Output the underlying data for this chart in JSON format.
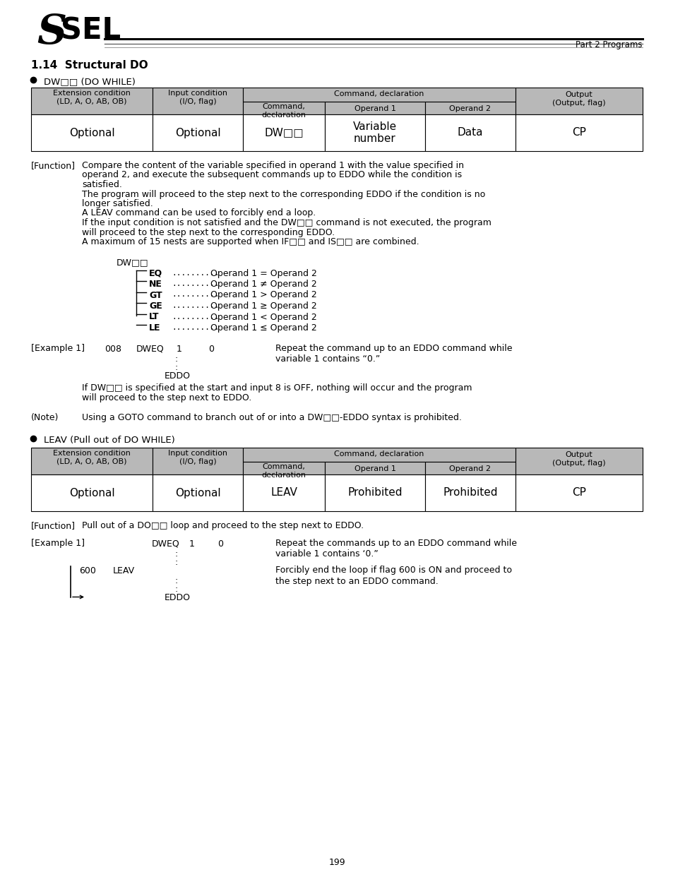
{
  "title_section": "1.14  Structural DO",
  "header_text": "Part 2 Programs",
  "bg_color": "#ffffff",
  "header_bg": "#b0b0b0",
  "bullet1": "DW□□ (DO WHILE)",
  "bullet2": "LEAV (Pull out of DO WHILE)",
  "table1_row": [
    "Optional",
    "Optional",
    "DW□□",
    "Variable\nnumber",
    "Data",
    "CP"
  ],
  "table2_row": [
    "Optional",
    "Optional",
    "LEAV",
    "Prohibited",
    "Prohibited",
    "CP"
  ],
  "function1_lines": [
    "Compare the content of the variable specified in operand 1 with the value specified in",
    "operand 2, and execute the subsequent commands up to EDDO while the condition is",
    "satisfied.",
    "The program will proceed to the step next to the corresponding EDDO if the condition is no",
    "longer satisfied.",
    "A LEAV command can be used to forcibly end a loop.",
    "If the input condition is not satisfied and the DW□□ command is not executed, the program",
    "will proceed to the step next to the corresponding EDDO.",
    "A maximum of 15 nests are supported when IF□□ and IS□□ are combined."
  ],
  "dw_diagram_label": "DW□□",
  "dw_conditions": [
    [
      "EQ",
      "Operand 1 = Operand 2"
    ],
    [
      "NE",
      "Operand 1 ≠ Operand 2"
    ],
    [
      "GT",
      "Operand 1 > Operand 2"
    ],
    [
      "GE",
      "Operand 1 ≥ Operand 2"
    ],
    [
      "LT",
      "Operand 1 < Operand 2"
    ],
    [
      "LE",
      "Operand 1 ≤ Operand 2"
    ]
  ],
  "example1_label": "[Example 1]",
  "example1_cols": [
    "008",
    "DWEQ",
    "1",
    "0"
  ],
  "example1_desc": "Repeat the command up to an EDDO command while\nvariable 1 contains “0.”",
  "if_note_lines": [
    "If DW□□ is specified at the start and input 8 is OFF, nothing will occur and the program",
    "will proceed to the step next to EDDO."
  ],
  "note_label": "(Note)",
  "note_text": "Using a GOTO command to branch out of or into a DW□□-EDDO syntax is prohibited.",
  "function2_text": "Pull out of a DO□□ loop and proceed to the step next to EDDO.",
  "example2_cols": [
    "DWEQ",
    "1",
    "0"
  ],
  "example2_desc": "Repeat the commands up to an EDDO command while\nvariable 1 contains ‘0.”",
  "example2_leav_col": "600   LEAV",
  "example2_leav_desc": "Forcibly end the loop if flag 600 is ON and proceed to\nthe step next to an EDDO command.",
  "page_number": "199"
}
